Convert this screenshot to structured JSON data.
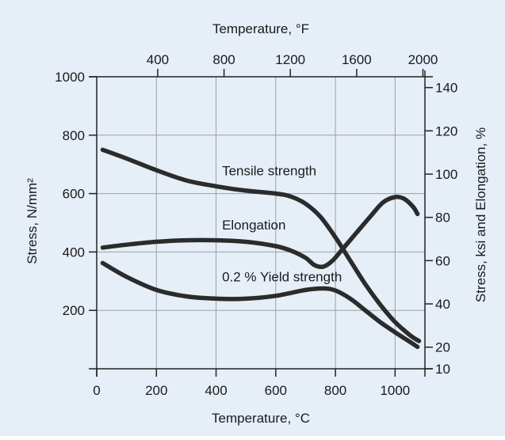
{
  "chart_data": {
    "type": "line",
    "x_bottom": {
      "label": "Temperature, °C",
      "range": [
        0,
        1100
      ],
      "ticks": [
        0,
        200,
        400,
        600,
        800,
        1000
      ],
      "tick_labels": [
        "0",
        "200",
        "400",
        "600",
        "800",
        "1000"
      ]
    },
    "x_top": {
      "label": "Temperature, °F",
      "ticks": [
        400,
        800,
        1200,
        1600,
        2000
      ],
      "tick_labels": [
        "400",
        "800",
        "1200",
        "1600",
        "2000"
      ]
    },
    "y_left": {
      "label": "Stress, N/mm²",
      "range": [
        0,
        1000
      ],
      "ticks": [
        200,
        400,
        600,
        800,
        1000
      ],
      "tick_labels": [
        "200",
        "400",
        "600",
        "800",
        "1000"
      ]
    },
    "y_right": {
      "label": "Stress, ksi and Elongation, %",
      "range": [
        10,
        145
      ],
      "ticks": [
        10,
        20,
        40,
        60,
        80,
        100,
        120,
        140
      ],
      "tick_labels": [
        "10",
        "20",
        "40",
        "60",
        "80",
        "100",
        "120",
        "140"
      ]
    },
    "grid": true,
    "series": [
      {
        "name": "Tensile strength",
        "axis": "left",
        "points": [
          [
            20,
            750
          ],
          [
            100,
            720
          ],
          [
            200,
            680
          ],
          [
            300,
            645
          ],
          [
            400,
            625
          ],
          [
            500,
            610
          ],
          [
            600,
            600
          ],
          [
            650,
            590
          ],
          [
            700,
            565
          ],
          [
            750,
            520
          ],
          [
            800,
            450
          ],
          [
            850,
            370
          ],
          [
            900,
            290
          ],
          [
            950,
            220
          ],
          [
            1000,
            160
          ],
          [
            1050,
            115
          ],
          [
            1080,
            95
          ]
        ]
      },
      {
        "name": "Elongation",
        "axis": "left",
        "points": [
          [
            20,
            415
          ],
          [
            100,
            425
          ],
          [
            200,
            435
          ],
          [
            300,
            440
          ],
          [
            400,
            440
          ],
          [
            500,
            435
          ],
          [
            600,
            420
          ],
          [
            650,
            405
          ],
          [
            700,
            380
          ],
          [
            730,
            355
          ],
          [
            760,
            350
          ],
          [
            790,
            370
          ],
          [
            820,
            405
          ],
          [
            870,
            465
          ],
          [
            920,
            525
          ],
          [
            960,
            570
          ],
          [
            1000,
            588
          ],
          [
            1030,
            582
          ],
          [
            1060,
            555
          ],
          [
            1075,
            530
          ]
        ]
      },
      {
        "name": "0.2 % Yield strength",
        "axis": "left",
        "points": [
          [
            20,
            362
          ],
          [
            100,
            315
          ],
          [
            200,
            270
          ],
          [
            300,
            248
          ],
          [
            400,
            240
          ],
          [
            500,
            240
          ],
          [
            600,
            250
          ],
          [
            700,
            270
          ],
          [
            760,
            275
          ],
          [
            800,
            268
          ],
          [
            850,
            240
          ],
          [
            900,
            200
          ],
          [
            950,
            160
          ],
          [
            1000,
            125
          ],
          [
            1050,
            92
          ],
          [
            1075,
            75
          ]
        ]
      }
    ]
  }
}
